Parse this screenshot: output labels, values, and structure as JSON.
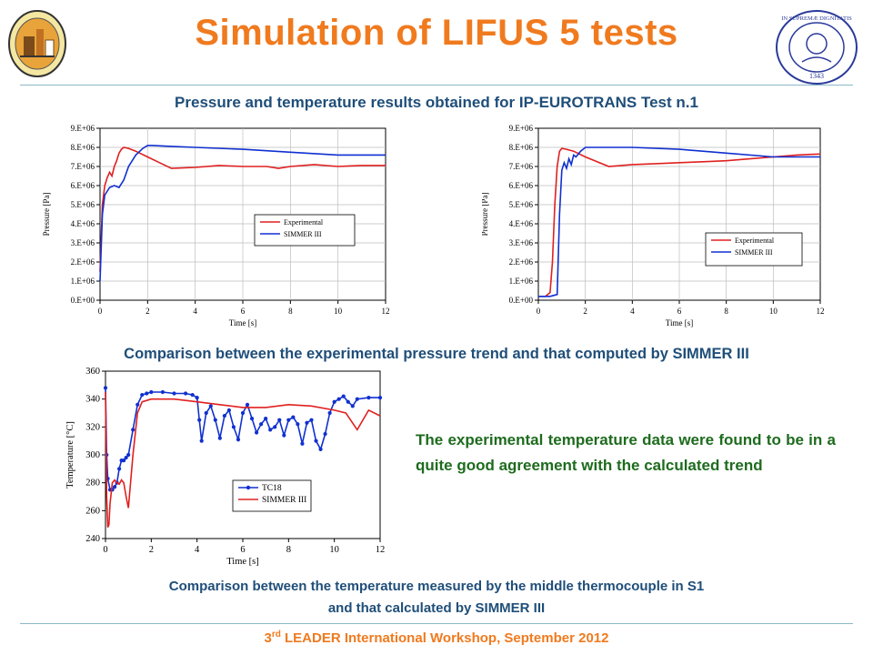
{
  "slide": {
    "title": "Simulation of LIFUS 5 tests",
    "subtitle": "Pressure and temperature results obtained for IP-EUROTRANS Test n.1",
    "pressure_caption": "Comparison between the experimental pressure trend and that computed by SIMMER III",
    "temperature_caption_line1": "Comparison between the temperature measured by the middle thermocouple in S1",
    "temperature_caption_line2": "and that calculated by SIMMER III",
    "agreement_text": "The experimental temperature data were found to be in a quite good agreement with the calculated trend",
    "footer_pre": "3",
    "footer_sup": "rd",
    "footer_post": " LEADER International Workshop, September 2012",
    "right_logo_text": "IN SUPREMÆ DIGNITATIS",
    "right_logo_year": "1343"
  },
  "colors": {
    "title": "#f07a1e",
    "text_blue": "#1f4e79",
    "text_green": "#1e6b1e",
    "experimental": "#e02020",
    "simmer": "#1030d0"
  },
  "chart_data": [
    {
      "id": "pressure-left",
      "type": "line",
      "xlabel": "Time [s]",
      "ylabel": "Pressure [Pa]",
      "xlim": [
        0,
        12
      ],
      "ylim": [
        0,
        9000000
      ],
      "xticks": [
        "0",
        "2",
        "4",
        "6",
        "8",
        "10",
        "12"
      ],
      "yticks": [
        "0.E+00",
        "1.E+06",
        "2.E+06",
        "3.E+06",
        "4.E+06",
        "5.E+06",
        "6.E+06",
        "7.E+06",
        "8.E+06",
        "9.E+06"
      ],
      "grid": true,
      "legend_position": "center-right",
      "series": [
        {
          "name": "Experimental",
          "color": "#e02020",
          "x": [
            0,
            0.1,
            0.2,
            0.3,
            0.4,
            0.5,
            0.6,
            0.7,
            0.8,
            0.9,
            1.0,
            1.2,
            1.5,
            2.0,
            2.5,
            3.0,
            4.0,
            5.0,
            6.0,
            7.0,
            7.5,
            8.0,
            9.0,
            10.0,
            11.0,
            12.0
          ],
          "y": [
            1500000,
            5000000,
            6000000,
            6400000,
            6700000,
            6500000,
            7000000,
            7300000,
            7700000,
            7900000,
            8000000,
            7950000,
            7800000,
            7500000,
            7200000,
            6900000,
            6950000,
            7050000,
            7000000,
            7000000,
            6900000,
            7000000,
            7100000,
            7000000,
            7050000,
            7050000
          ]
        },
        {
          "name": "SIMMER III",
          "color": "#1030d0",
          "x": [
            0,
            0.1,
            0.2,
            0.4,
            0.6,
            0.8,
            1.0,
            1.2,
            1.5,
            1.8,
            2.0,
            2.2,
            3.0,
            4.0,
            6.0,
            8.0,
            10.0,
            12.0
          ],
          "y": [
            1000000,
            4500000,
            5500000,
            5900000,
            6000000,
            5900000,
            6300000,
            7000000,
            7600000,
            7950000,
            8100000,
            8100000,
            8050000,
            8000000,
            7900000,
            7750000,
            7600000,
            7600000
          ]
        }
      ]
    },
    {
      "id": "pressure-right",
      "type": "line",
      "xlabel": "Time [s]",
      "ylabel": "Pressure [Pa]",
      "xlim": [
        0,
        12
      ],
      "ylim": [
        0,
        9000000
      ],
      "xticks": [
        "0",
        "2",
        "4",
        "6",
        "8",
        "10",
        "12"
      ],
      "yticks": [
        "0.E+00",
        "1.E+06",
        "2.E+06",
        "3.E+06",
        "4.E+06",
        "5.E+06",
        "6.E+06",
        "7.E+06",
        "8.E+06",
        "9.E+06"
      ],
      "grid": true,
      "legend_position": "bottom-right",
      "series": [
        {
          "name": "Experimental",
          "color": "#e02020",
          "x": [
            0,
            0.3,
            0.5,
            0.6,
            0.7,
            0.8,
            0.9,
            1.0,
            1.2,
            1.5,
            2.0,
            3.0,
            4.0,
            5.0,
            6.0,
            7.0,
            8.0,
            9.0,
            10.0,
            11.0,
            12.0
          ],
          "y": [
            200000,
            200000,
            400000,
            2000000,
            5000000,
            7000000,
            7800000,
            7950000,
            7900000,
            7800000,
            7500000,
            7000000,
            7100000,
            7150000,
            7200000,
            7250000,
            7300000,
            7400000,
            7500000,
            7600000,
            7650000
          ]
        },
        {
          "name": "SIMMER III",
          "color": "#1030d0",
          "x": [
            0,
            0.5,
            0.8,
            0.9,
            1.0,
            1.1,
            1.2,
            1.3,
            1.4,
            1.5,
            1.6,
            1.8,
            2.0,
            4.0,
            6.0,
            8.0,
            10.0,
            12.0
          ],
          "y": [
            200000,
            200000,
            300000,
            4500000,
            6800000,
            7200000,
            6900000,
            7400000,
            7100000,
            7600000,
            7500000,
            7800000,
            8000000,
            8000000,
            7900000,
            7700000,
            7500000,
            7500000
          ]
        }
      ]
    },
    {
      "id": "temperature",
      "type": "line",
      "xlabel": "Time [s]",
      "ylabel": "Temperature [°C]",
      "xlim": [
        0,
        12
      ],
      "ylim": [
        240,
        360
      ],
      "xticks": [
        "0",
        "2",
        "4",
        "6",
        "8",
        "10",
        "12"
      ],
      "yticks": [
        "240",
        "260",
        "280",
        "300",
        "320",
        "340",
        "360"
      ],
      "grid": false,
      "legend_position": "bottom-right",
      "series": [
        {
          "name": "TC18",
          "color": "#1030d0",
          "markers": true,
          "x": [
            0,
            0.05,
            0.1,
            0.2,
            0.3,
            0.4,
            0.5,
            0.6,
            0.7,
            0.8,
            0.9,
            1.0,
            1.2,
            1.4,
            1.6,
            1.8,
            2.0,
            2.5,
            3.0,
            3.5,
            3.8,
            4.0,
            4.1,
            4.2,
            4.4,
            4.6,
            4.8,
            5.0,
            5.2,
            5.4,
            5.6,
            5.8,
            6.0,
            6.2,
            6.4,
            6.6,
            6.8,
            7.0,
            7.2,
            7.4,
            7.6,
            7.8,
            8.0,
            8.2,
            8.4,
            8.6,
            8.8,
            9.0,
            9.2,
            9.4,
            9.6,
            9.8,
            10.0,
            10.2,
            10.4,
            10.6,
            10.8,
            11.0,
            11.5,
            12.0
          ],
          "y": [
            348,
            300,
            283,
            275,
            275,
            277,
            280,
            290,
            296,
            296,
            298,
            300,
            318,
            336,
            343,
            344,
            345,
            345,
            344,
            344,
            343,
            341,
            325,
            310,
            330,
            335,
            325,
            312,
            328,
            332,
            320,
            311,
            330,
            336,
            326,
            316,
            322,
            326,
            318,
            320,
            325,
            314,
            325,
            327,
            322,
            308,
            323,
            325,
            310,
            304,
            315,
            330,
            338,
            340,
            342,
            338,
            335,
            340,
            341,
            341
          ]
        },
        {
          "name": "SIMMER III",
          "color": "#e02020",
          "markers": false,
          "x": [
            0,
            0.05,
            0.1,
            0.15,
            0.2,
            0.3,
            0.4,
            0.5,
            0.6,
            0.7,
            0.8,
            0.9,
            1.0,
            1.2,
            1.4,
            1.6,
            2.0,
            3.0,
            4.0,
            5.0,
            6.0,
            7.0,
            8.0,
            9.0,
            10.0,
            10.5,
            11.0,
            11.5,
            12.0
          ],
          "y": [
            345,
            270,
            248,
            250,
            265,
            280,
            282,
            280,
            279,
            282,
            280,
            270,
            262,
            300,
            330,
            338,
            340,
            340,
            338,
            336,
            334,
            334,
            336,
            335,
            332,
            330,
            318,
            332,
            328
          ]
        }
      ]
    }
  ]
}
